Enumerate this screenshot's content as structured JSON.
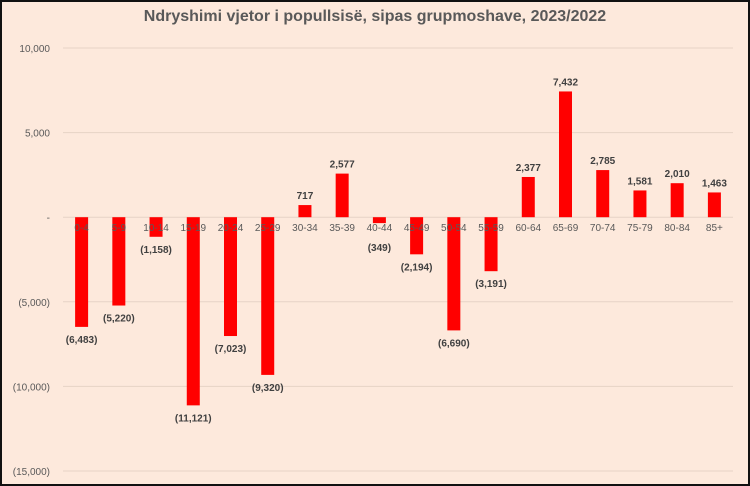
{
  "chart_data": {
    "type": "bar",
    "title": "Ndryshimi vjetor i popullsisë, sipas grupmoshave, 2023/2022",
    "categories": [
      "0-4",
      "5-9",
      "10-14",
      "15-19",
      "20-24",
      "25-29",
      "30-34",
      "35-39",
      "40-44",
      "45-49",
      "50-54",
      "55-59",
      "60-64",
      "65-69",
      "70-74",
      "75-79",
      "80-84",
      "85+"
    ],
    "values": [
      -6483,
      -5220,
      -1158,
      -11121,
      -7023,
      -9320,
      717,
      2577,
      -349,
      -2194,
      -6690,
      -3191,
      2377,
      7432,
      2785,
      1581,
      2010,
      1463
    ],
    "data_labels": [
      "(6,483)",
      "(5,220)",
      "(1,158)",
      "(11,121)",
      "(7,023)",
      "(9,320)",
      "717",
      "2,577",
      "(349)",
      "(2,194)",
      "(6,690)",
      "(3,191)",
      "2,377",
      "7,432",
      "2,785",
      "1,581",
      "2,010",
      "1,463"
    ],
    "ylim": [
      -15000,
      10000
    ],
    "yticks": [
      10000,
      5000,
      0,
      -5000,
      -10000,
      -15000
    ],
    "ytick_labels": [
      "10,000",
      "5,000",
      "-",
      "(5,000)",
      "(10,000)",
      "(15,000)"
    ],
    "bar_color": "#ff0000",
    "background": "#fde9dc",
    "grid": true,
    "legend": "none"
  }
}
